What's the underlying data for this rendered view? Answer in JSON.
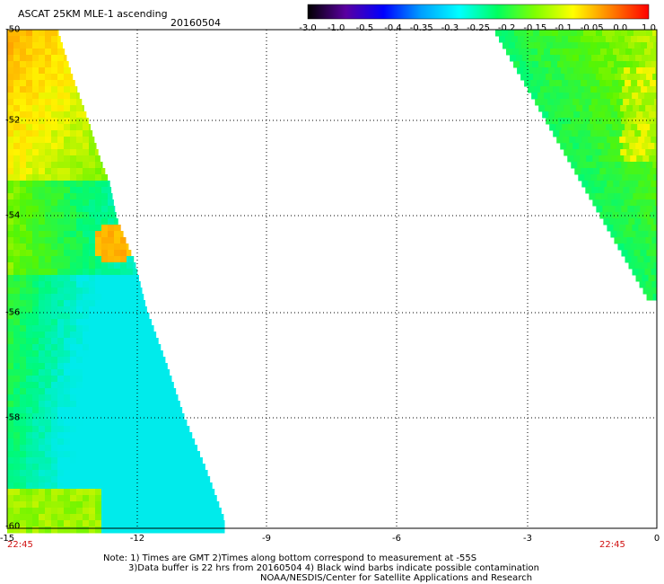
{
  "header": {
    "title": "ASCAT 25KM MLE-1 ascending",
    "date": "20160504"
  },
  "colorbar": {
    "stops": [
      "#000000",
      "#5a00a0",
      "#0000ff",
      "#00a0ff",
      "#00ffff",
      "#00ff60",
      "#80ff00",
      "#ffff00",
      "#ff8000",
      "#ff0000"
    ],
    "labels": [
      "-3.0",
      "-1.0",
      "-0.5",
      "-0.4",
      "-0.35",
      "-0.3",
      "-0.25",
      "-0.2",
      "-0.15",
      "-0.1",
      "-0.05",
      "0.0",
      "1.0"
    ]
  },
  "map": {
    "y_ticks": [
      "-50",
      "-52",
      "-54",
      "-56",
      "-58",
      "-60"
    ],
    "x_ticks": [
      "-15",
      "-12",
      "-9",
      "-6",
      "-3",
      "0"
    ],
    "time_left": "22:45",
    "time_right": "22:45",
    "lat_range": [
      -60,
      -50
    ],
    "lon_range": [
      -15,
      0
    ]
  },
  "notes": {
    "line1": "Note: 1) Times are GMT 2)Times along bottom correspond to measurement at -55S",
    "line2": "3)Data buffer is 22 hrs from 20160504 4) Black wind barbs indicate possible contamination",
    "line3": "NOAA/NESDIS/Center for Satellite Applications and Research"
  }
}
